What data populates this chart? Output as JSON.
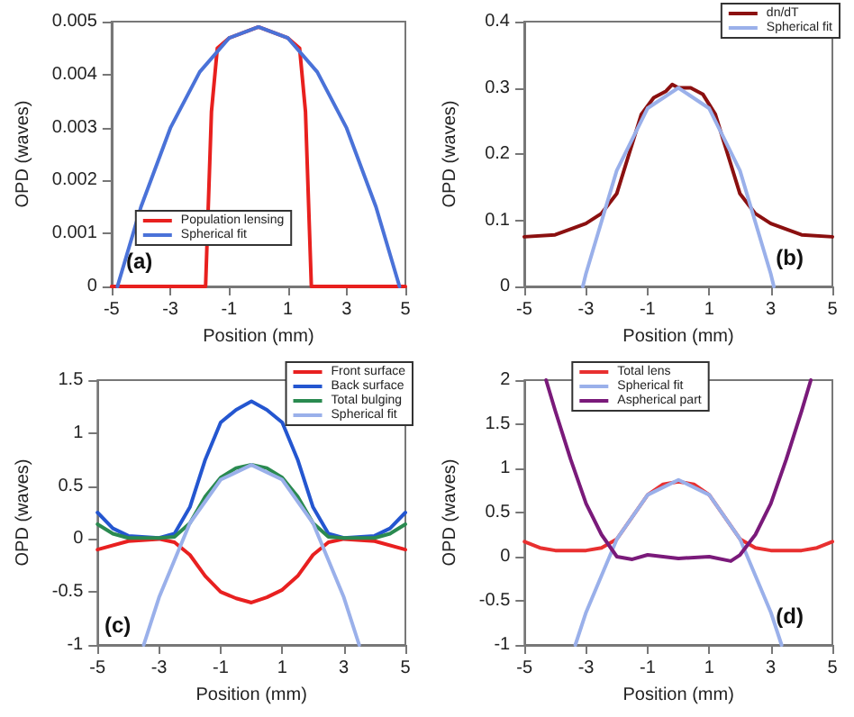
{
  "chart_data": [
    {
      "type": "line",
      "xlabel": "Position (mm)",
      "ylabel": "OPD (waves)",
      "annotations": [
        "(a)"
      ],
      "xlim": [
        -5,
        5
      ],
      "xticks": [
        -5,
        -3,
        -1,
        1,
        3,
        5
      ],
      "ylim": [
        0,
        0.005
      ],
      "yticks": [
        0,
        0.001,
        0.002,
        0.003,
        0.004,
        0.005
      ],
      "grid": false,
      "legend": "bottom",
      "marker": "none",
      "line_style": "solid",
      "series": [
        {
          "name": "Population lensing",
          "color": "#e8201e",
          "x": [
            -5,
            -1.8,
            -1.6,
            -1.4,
            -1,
            0,
            1,
            1.4,
            1.6,
            1.8,
            5
          ],
          "values": [
            0,
            0,
            0.0033,
            0.0045,
            0.00469,
            0.0049,
            0.00469,
            0.0045,
            0.0033,
            0,
            0
          ]
        },
        {
          "name": "Spherical fit",
          "color": "#4a72d8",
          "x": [
            -4.8,
            -4,
            -3,
            -2,
            -1,
            0,
            1,
            2,
            3,
            4,
            4.8
          ],
          "values": [
            0,
            0.0015,
            0.00299,
            0.00405,
            0.00469,
            0.0049,
            0.00469,
            0.00405,
            0.00299,
            0.0015,
            0
          ]
        }
      ]
    },
    {
      "type": "line",
      "xlabel": "Position (mm)",
      "ylabel": "OPD (waves)",
      "annotations": [
        "(b)"
      ],
      "xlim": [
        -5,
        5
      ],
      "xticks": [
        -5,
        -3,
        -1,
        1,
        3,
        5
      ],
      "ylim": [
        0,
        0.4
      ],
      "yticks": [
        0,
        0.1,
        0.2,
        0.3,
        0.4
      ],
      "grid": false,
      "legend": "top right",
      "marker": "none",
      "line_style": "solid",
      "series": [
        {
          "name": "dn/dT",
          "color": "#8b1010",
          "x": [
            -5,
            -4,
            -3,
            -2.5,
            -2,
            -1.6,
            -1.2,
            -0.8,
            -0.4,
            -0.2,
            0,
            0.4,
            0.8,
            1.2,
            1.6,
            2,
            2.5,
            3,
            4,
            5
          ],
          "values": [
            0.075,
            0.078,
            0.095,
            0.11,
            0.14,
            0.2,
            0.26,
            0.285,
            0.295,
            0.305,
            0.3,
            0.3,
            0.29,
            0.26,
            0.2,
            0.14,
            0.11,
            0.095,
            0.078,
            0.075
          ]
        },
        {
          "name": "Spherical fit",
          "color": "#9ab0ea",
          "x": [
            -3.1,
            -3,
            -2,
            -1,
            0,
            1,
            2,
            3,
            3.1
          ],
          "values": [
            0,
            0.019,
            0.175,
            0.269,
            0.3,
            0.269,
            0.175,
            0.019,
            0
          ]
        }
      ]
    },
    {
      "type": "line",
      "xlabel": "Position (mm)",
      "ylabel": "OPD (waves)",
      "annotations": [
        "(c)"
      ],
      "xlim": [
        -5,
        5
      ],
      "xticks": [
        -5,
        -3,
        -1,
        1,
        3,
        5
      ],
      "ylim": [
        -1,
        1.5
      ],
      "yticks": [
        -1,
        -0.5,
        0,
        0.5,
        1,
        1.5
      ],
      "grid": false,
      "legend": "top right",
      "marker": "none",
      "line_style": "solid",
      "series": [
        {
          "name": "Front surface",
          "color": "#e82020",
          "x": [
            -5,
            -4,
            -3,
            -2.5,
            -2,
            -1.5,
            -1,
            -0.5,
            0,
            0.5,
            1,
            1.5,
            2,
            2.5,
            3,
            4,
            5
          ],
          "values": [
            -0.1,
            -0.02,
            0,
            -0.03,
            -0.15,
            -0.35,
            -0.5,
            -0.56,
            -0.6,
            -0.55,
            -0.48,
            -0.35,
            -0.15,
            -0.03,
            0,
            -0.02,
            -0.1
          ]
        },
        {
          "name": "Back surface",
          "color": "#2456d0",
          "x": [
            -5,
            -4.5,
            -4,
            -3,
            -2.5,
            -2,
            -1.5,
            -1,
            -0.5,
            0,
            0.5,
            1,
            1.5,
            2,
            2.5,
            3,
            4,
            4.5,
            5
          ],
          "values": [
            0.25,
            0.1,
            0.03,
            0.01,
            0.05,
            0.3,
            0.75,
            1.1,
            1.22,
            1.3,
            1.22,
            1.1,
            0.75,
            0.3,
            0.05,
            0.01,
            0.03,
            0.1,
            0.25
          ]
        },
        {
          "name": "Total bulging",
          "color": "#2a8a50",
          "x": [
            -5,
            -4.5,
            -4,
            -3,
            -2.5,
            -2,
            -1.5,
            -1,
            -0.5,
            0,
            0.5,
            1,
            1.5,
            2,
            2.5,
            3,
            4,
            4.5,
            5
          ],
          "values": [
            0.14,
            0.05,
            0.01,
            0.01,
            0.02,
            0.15,
            0.4,
            0.58,
            0.67,
            0.7,
            0.67,
            0.58,
            0.4,
            0.15,
            0.02,
            0.01,
            0.01,
            0.05,
            0.14
          ]
        },
        {
          "name": "Spherical fit",
          "color": "#9ab0ea",
          "x": [
            -3.5,
            -3,
            -2,
            -1,
            0,
            1,
            2,
            3,
            3.5
          ],
          "values": [
            -1,
            -0.55,
            0.15,
            0.56,
            0.7,
            0.56,
            0.15,
            -0.55,
            -1
          ]
        }
      ]
    },
    {
      "type": "line",
      "xlabel": "Position (mm)",
      "ylabel": "OPD (waves)",
      "annotations": [
        "(d)"
      ],
      "xlim": [
        -5,
        5
      ],
      "xticks": [
        -5,
        -3,
        -1,
        1,
        3,
        5
      ],
      "ylim": [
        -1,
        2
      ],
      "yticks": [
        -1,
        -0.5,
        0,
        0.5,
        1,
        1.5,
        2
      ],
      "grid": false,
      "legend": "top",
      "marker": "none",
      "line_style": "solid",
      "series": [
        {
          "name": "Total lens",
          "color": "#e83030",
          "x": [
            -5,
            -4.5,
            -4,
            -3,
            -2.5,
            -2,
            -1.5,
            -1,
            -0.5,
            0,
            0.5,
            1,
            1.5,
            2,
            2.5,
            3,
            4,
            4.5,
            5
          ],
          "values": [
            0.17,
            0.1,
            0.07,
            0.07,
            0.1,
            0.2,
            0.45,
            0.7,
            0.82,
            0.85,
            0.82,
            0.7,
            0.45,
            0.2,
            0.1,
            0.07,
            0.07,
            0.1,
            0.17
          ]
        },
        {
          "name": "Spherical fit",
          "color": "#9ab0ea",
          "x": [
            -3.35,
            -3,
            -2,
            -1,
            0,
            1,
            2,
            3,
            3.35
          ],
          "values": [
            -1,
            -0.63,
            0.2,
            0.7,
            0.87,
            0.7,
            0.2,
            -0.63,
            -1
          ]
        },
        {
          "name": "Aspherical part",
          "color": "#7a1a7a",
          "x": [
            -4.3,
            -4,
            -3.5,
            -3,
            -2.5,
            -2,
            -1.5,
            -1,
            0,
            1,
            1.7,
            2,
            2.5,
            3,
            3.5,
            4,
            4.3
          ],
          "values": [
            2,
            1.65,
            1.1,
            0.6,
            0.25,
            0,
            -0.03,
            0.02,
            -0.02,
            0,
            -0.05,
            0.02,
            0.25,
            0.6,
            1.1,
            1.65,
            2
          ]
        }
      ]
    }
  ]
}
